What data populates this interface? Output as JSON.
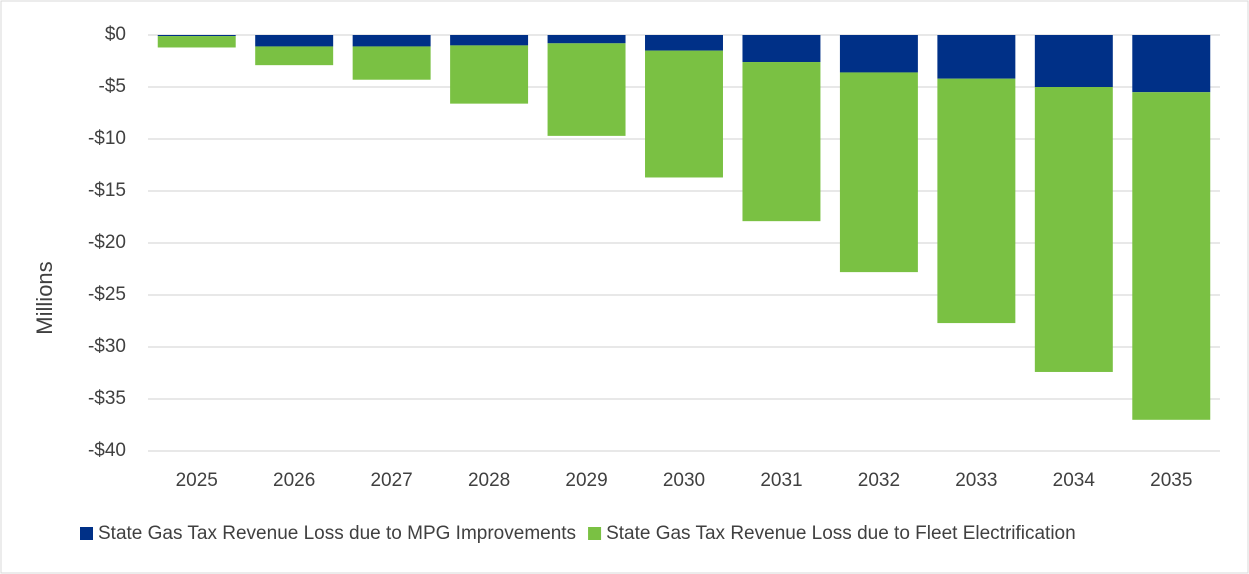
{
  "chart_data": {
    "type": "stacked_bar",
    "y_label": "Millions",
    "categories": [
      "2025",
      "2026",
      "2027",
      "2028",
      "2029",
      "2030",
      "2031",
      "2032",
      "2033",
      "2034",
      "2035"
    ],
    "series": [
      {
        "name": "State Gas Tax Revenue Loss due to MPG Improvements",
        "color": "#003087",
        "values": [
          -0.1,
          -1.1,
          -1.1,
          -1.0,
          -0.8,
          -1.5,
          -2.6,
          -3.6,
          -4.2,
          -5.0,
          -5.5
        ]
      },
      {
        "name": "State Gas Tax Revenue Loss due to Fleet Electrification",
        "color": "#7ac143",
        "values": [
          -1.1,
          -1.8,
          -3.2,
          -5.6,
          -8.9,
          -12.2,
          -15.3,
          -19.2,
          -23.5,
          -27.4,
          -31.5
        ]
      }
    ],
    "ylim": [
      -40,
      0
    ],
    "yticks": [
      {
        "value": 0,
        "label": "$0"
      },
      {
        "value": -5,
        "label": "-$5"
      },
      {
        "value": -10,
        "label": "-$10"
      },
      {
        "value": -15,
        "label": "-$15"
      },
      {
        "value": -20,
        "label": "-$20"
      },
      {
        "value": -25,
        "label": "-$25"
      },
      {
        "value": -30,
        "label": "-$30"
      },
      {
        "value": -35,
        "label": "-$35"
      },
      {
        "value": -40,
        "label": "-$40"
      }
    ],
    "grid": true,
    "legend": "bottom"
  }
}
